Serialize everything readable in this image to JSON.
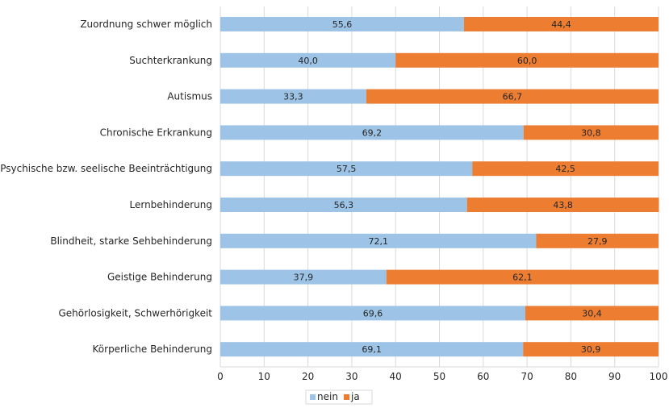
{
  "chart_data": {
    "type": "bar",
    "orientation": "horizontal",
    "stacked": true,
    "categories": [
      "Zuordnung schwer möglich",
      "Suchterkrankung",
      "Autismus",
      "Chronische Erkrankung",
      "Psychische bzw. seelische Beeinträchtigung",
      "Lernbehinderung",
      "Blindheit, starke Sehbehinderung",
      "Geistige Behinderung",
      "Gehörlosigkeit, Schwerhörigkeit",
      "Körperliche Behinderung"
    ],
    "series": [
      {
        "name": "nein",
        "color": "#9dc3e6",
        "values": [
          55.6,
          40.0,
          33.3,
          69.2,
          57.5,
          56.3,
          72.1,
          37.9,
          69.6,
          69.1
        ],
        "labels": [
          "55,6",
          "40,0",
          "33,3",
          "69,2",
          "57,5",
          "56,3",
          "72,1",
          "37,9",
          "69,6",
          "69,1"
        ]
      },
      {
        "name": "ja",
        "color": "#ed7d31",
        "values": [
          44.4,
          60.0,
          66.7,
          30.8,
          42.5,
          43.8,
          27.9,
          62.1,
          30.4,
          30.9
        ],
        "labels": [
          "44,4",
          "60,0",
          "66,7",
          "30,8",
          "42,5",
          "43,8",
          "27,9",
          "62,1",
          "30,4",
          "30,9"
        ]
      }
    ],
    "xlim": [
      0,
      100
    ],
    "xticks": [
      "0",
      "10",
      "20",
      "30",
      "40",
      "50",
      "60",
      "70",
      "80",
      "90",
      "100"
    ],
    "grid": true,
    "legend_position": "bottom"
  }
}
